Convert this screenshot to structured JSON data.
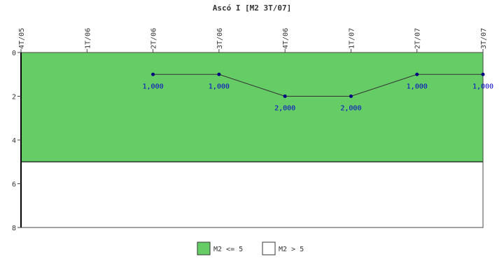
{
  "chart_data": {
    "type": "line",
    "title": "Ascó I [M2 3T/07]",
    "categories": [
      "4T/05",
      "1T/06",
      "2T/06",
      "3T/06",
      "4T/06",
      "1T/07",
      "2T/07",
      "3T/07"
    ],
    "series": [
      {
        "name": "M2",
        "color": "#000080",
        "values": [
          null,
          null,
          1,
          1,
          2,
          2,
          1,
          1
        ],
        "value_labels": [
          null,
          null,
          "1,000",
          "1,000",
          "2,000",
          "2,000",
          "1,000",
          "1,000"
        ]
      }
    ],
    "bands": [
      {
        "name": "M2 <= 5",
        "color": "#66cc66",
        "from": 0,
        "to": 5
      },
      {
        "name": "M2 > 5",
        "color": "#ffffff",
        "from": 5,
        "to": 8
      }
    ],
    "ylim": [
      0,
      8
    ],
    "yticks": [
      0,
      2,
      4,
      6,
      8
    ],
    "y_reversed": true
  }
}
